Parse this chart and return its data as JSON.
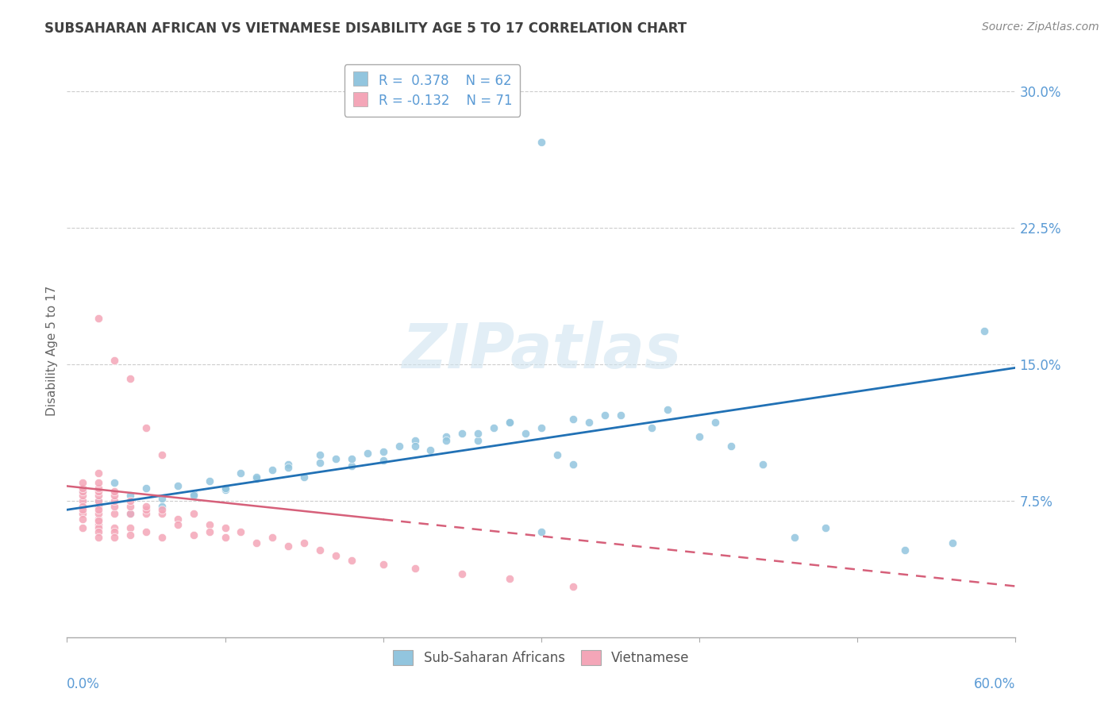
{
  "title": "SUBSAHARAN AFRICAN VS VIETNAMESE DISABILITY AGE 5 TO 17 CORRELATION CHART",
  "source": "Source: ZipAtlas.com",
  "ylabel": "Disability Age 5 to 17",
  "xlim": [
    0.0,
    0.6
  ],
  "ylim": [
    0.0,
    0.315
  ],
  "color_blue": "#92c5de",
  "color_pink": "#f4a6b8",
  "color_blue_line": "#2171b5",
  "color_pink_line": "#d6607a",
  "color_text_axis": "#5b9bd5",
  "color_title": "#404040",
  "color_source": "#888888",
  "color_watermark": "#d8e8f0",
  "blue_line_start_y": 0.07,
  "blue_line_end_y": 0.148,
  "pink_line_start_y": 0.083,
  "pink_line_end_y": 0.028,
  "blue_x": [
    0.01,
    0.02,
    0.03,
    0.04,
    0.05,
    0.06,
    0.07,
    0.08,
    0.09,
    0.1,
    0.11,
    0.12,
    0.13,
    0.14,
    0.15,
    0.16,
    0.17,
    0.18,
    0.19,
    0.2,
    0.21,
    0.22,
    0.23,
    0.24,
    0.25,
    0.26,
    0.27,
    0.28,
    0.29,
    0.3,
    0.31,
    0.32,
    0.33,
    0.35,
    0.37,
    0.38,
    0.4,
    0.41,
    0.42,
    0.44,
    0.3,
    0.56,
    0.53,
    0.46,
    0.48,
    0.04,
    0.06,
    0.08,
    0.1,
    0.12,
    0.14,
    0.16,
    0.18,
    0.2,
    0.22,
    0.24,
    0.26,
    0.28,
    0.3,
    0.32,
    0.34,
    0.58
  ],
  "blue_y": [
    0.08,
    0.075,
    0.085,
    0.078,
    0.082,
    0.076,
    0.083,
    0.079,
    0.086,
    0.081,
    0.09,
    0.087,
    0.092,
    0.095,
    0.088,
    0.1,
    0.098,
    0.094,
    0.101,
    0.097,
    0.105,
    0.108,
    0.103,
    0.11,
    0.112,
    0.108,
    0.115,
    0.118,
    0.112,
    0.272,
    0.1,
    0.095,
    0.118,
    0.122,
    0.115,
    0.125,
    0.11,
    0.118,
    0.105,
    0.095,
    0.058,
    0.052,
    0.048,
    0.055,
    0.06,
    0.068,
    0.072,
    0.078,
    0.082,
    0.088,
    0.093,
    0.096,
    0.098,
    0.102,
    0.105,
    0.108,
    0.112,
    0.118,
    0.115,
    0.12,
    0.122,
    0.168
  ],
  "pink_x": [
    0.01,
    0.01,
    0.01,
    0.01,
    0.01,
    0.01,
    0.01,
    0.01,
    0.01,
    0.01,
    0.02,
    0.02,
    0.02,
    0.02,
    0.02,
    0.02,
    0.02,
    0.02,
    0.02,
    0.02,
    0.02,
    0.02,
    0.02,
    0.02,
    0.02,
    0.03,
    0.03,
    0.03,
    0.03,
    0.03,
    0.03,
    0.03,
    0.03,
    0.04,
    0.04,
    0.04,
    0.04,
    0.04,
    0.05,
    0.05,
    0.05,
    0.05,
    0.06,
    0.06,
    0.06,
    0.07,
    0.07,
    0.08,
    0.08,
    0.09,
    0.09,
    0.1,
    0.1,
    0.11,
    0.12,
    0.13,
    0.14,
    0.15,
    0.16,
    0.17,
    0.18,
    0.2,
    0.22,
    0.25,
    0.28,
    0.32,
    0.02,
    0.03,
    0.04,
    0.05,
    0.06
  ],
  "pink_y": [
    0.075,
    0.078,
    0.08,
    0.082,
    0.085,
    0.072,
    0.068,
    0.065,
    0.07,
    0.06,
    0.072,
    0.075,
    0.078,
    0.08,
    0.065,
    0.068,
    0.07,
    0.062,
    0.06,
    0.058,
    0.082,
    0.085,
    0.09,
    0.055,
    0.064,
    0.068,
    0.072,
    0.075,
    0.078,
    0.06,
    0.058,
    0.055,
    0.08,
    0.068,
    0.072,
    0.075,
    0.06,
    0.056,
    0.068,
    0.07,
    0.072,
    0.058,
    0.068,
    0.07,
    0.055,
    0.065,
    0.062,
    0.068,
    0.056,
    0.062,
    0.058,
    0.06,
    0.055,
    0.058,
    0.052,
    0.055,
    0.05,
    0.052,
    0.048,
    0.045,
    0.042,
    0.04,
    0.038,
    0.035,
    0.032,
    0.028,
    0.175,
    0.152,
    0.142,
    0.115,
    0.1
  ]
}
